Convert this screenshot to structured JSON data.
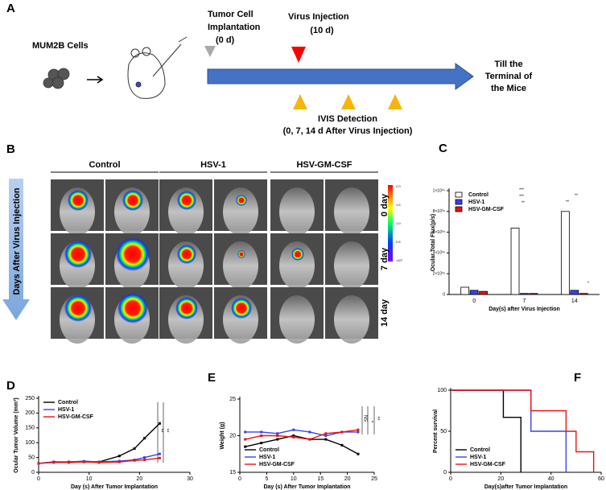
{
  "panel_a": {
    "panel_label": "A",
    "cells_label": "MUM2B Cells",
    "implantation": [
      "Tumor Cell",
      "Implantation",
      "(0 d)"
    ],
    "injection": [
      "Virus Injection",
      "(10 d)"
    ],
    "terminal": [
      "Till the",
      "Terminal of",
      "the Mice"
    ],
    "ivis": [
      "IVIS Detection",
      "(0, 7, 14 d After Virus Injection)"
    ]
  },
  "panel_b": {
    "panel_label": "B",
    "groups": [
      "Control",
      "HSV-1",
      "HSV-GM-CSF"
    ],
    "rows": [
      "0 day",
      "7 day",
      "14 day"
    ],
    "side_label": "Days After Virus Injection",
    "colorbar_labels": [
      "2.0",
      "1.5",
      "1.0",
      "0.5",
      "×10⁷"
    ]
  },
  "chart_data": [
    {
      "panel_label": "C",
      "type": "bar",
      "ylabel": "Ocular Total Flux(p/s)",
      "xlabel": "Day(s) after Virus Injection",
      "categories": [
        "0",
        "7",
        "14"
      ],
      "series": [
        {
          "name": "Control",
          "color": "#ffffff",
          "values": [
            70000000,
            640000000,
            800000000
          ]
        },
        {
          "name": "HSV-1",
          "color": "#3344ee",
          "values": [
            40000000,
            10000000,
            40000000
          ]
        },
        {
          "name": "HSV-GM-CSF",
          "color": "#ee1111",
          "values": [
            30000000,
            10000000,
            10000000
          ]
        }
      ],
      "ylim": [
        0,
        1000000000
      ],
      "yticks": [
        0,
        {
          "value": 200000000,
          "label": "2×10⁰⁸"
        },
        {
          "value": 400000000,
          "label": "4×10⁰⁸"
        },
        {
          "value": 600000000,
          "label": "6×10⁰⁸"
        },
        {
          "value": 800000000,
          "label": "8×10⁰⁸"
        },
        {
          "value": 1000000000,
          "label": "1×10⁰⁹"
        }
      ],
      "legend": "upper left",
      "annotations": [
        "***",
        "***",
        "**",
        "**",
        "**",
        "*"
      ]
    },
    {
      "panel_label": "D",
      "type": "line",
      "ylabel": "Ocular Tumor Volume (mm³)",
      "xlabel": "Day (s) After Tumor Implantation",
      "x": [
        0,
        3,
        6,
        9,
        12,
        16,
        19,
        21,
        24
      ],
      "series": [
        {
          "name": "Control",
          "color": "#000000",
          "values": [
            30,
            35,
            35,
            37,
            35,
            55,
            80,
            115,
            165
          ]
        },
        {
          "name": "HSV-1",
          "color": "#3344ee",
          "values": [
            30,
            35,
            35,
            37,
            35,
            38,
            42,
            50,
            62
          ]
        },
        {
          "name": "HSV-GM-CSF",
          "color": "#ee1111",
          "values": [
            30,
            33,
            33,
            35,
            33,
            35,
            40,
            42,
            48
          ]
        }
      ],
      "xlim": [
        0,
        30
      ],
      "xticks": [
        0,
        10,
        20,
        30
      ],
      "ylim": [
        0,
        250
      ],
      "yticks": [
        0,
        50,
        100,
        150,
        200,
        250
      ],
      "legend": "upper left",
      "annotations": [
        "**",
        "**"
      ]
    },
    {
      "panel_label": "E",
      "type": "line",
      "ylabel": "Weight (g)",
      "xlabel": "Day (s) After Tumor Implantation",
      "x": [
        1,
        4,
        7,
        10,
        13,
        16,
        19,
        22
      ],
      "series": [
        {
          "name": "Control",
          "color": "#000000",
          "values": [
            18.5,
            19,
            19.5,
            20,
            19.5,
            19.5,
            18.7,
            17.5
          ]
        },
        {
          "name": "HSV-1",
          "color": "#3344ee",
          "values": [
            20.5,
            20.5,
            20.3,
            20.8,
            20.5,
            20,
            20.5,
            20.5
          ]
        },
        {
          "name": "HSV-GM-CSF",
          "color": "#ee1111",
          "values": [
            19.5,
            20,
            20,
            19.8,
            19.5,
            20.3,
            20.5,
            20.8
          ]
        }
      ],
      "xlim": [
        0,
        25
      ],
      "xticks": [
        0,
        5,
        10,
        15,
        20,
        25
      ],
      "ylim": [
        15,
        25
      ],
      "yticks": [
        15,
        20,
        25
      ],
      "legend": "lower left",
      "annotations": [
        "NS",
        "*",
        "**"
      ]
    },
    {
      "panel_label": "F",
      "type": "line",
      "ylabel": "Percent survival",
      "xlabel": "Day(s)after Tumor Implantation",
      "series": [
        {
          "name": "Control",
          "color": "#000000",
          "x": [
            0,
            21,
            21,
            28,
            28
          ],
          "values": [
            100,
            100,
            67,
            67,
            0
          ]
        },
        {
          "name": "HSV-1",
          "color": "#3344ee",
          "x": [
            0,
            32,
            32,
            46,
            46
          ],
          "values": [
            100,
            100,
            50,
            50,
            0
          ]
        },
        {
          "name": "HSV-GM-CSF",
          "color": "#ee1111",
          "x": [
            0,
            32,
            32,
            46,
            46,
            50,
            50,
            57,
            57
          ],
          "values": [
            100,
            100,
            75,
            75,
            50,
            50,
            25,
            25,
            0
          ]
        }
      ],
      "xlim": [
        0,
        60
      ],
      "xticks": [
        0,
        20,
        40,
        60
      ],
      "ylim": [
        0,
        100
      ],
      "yticks": [
        0,
        50,
        100
      ],
      "legend": "lower left"
    }
  ]
}
